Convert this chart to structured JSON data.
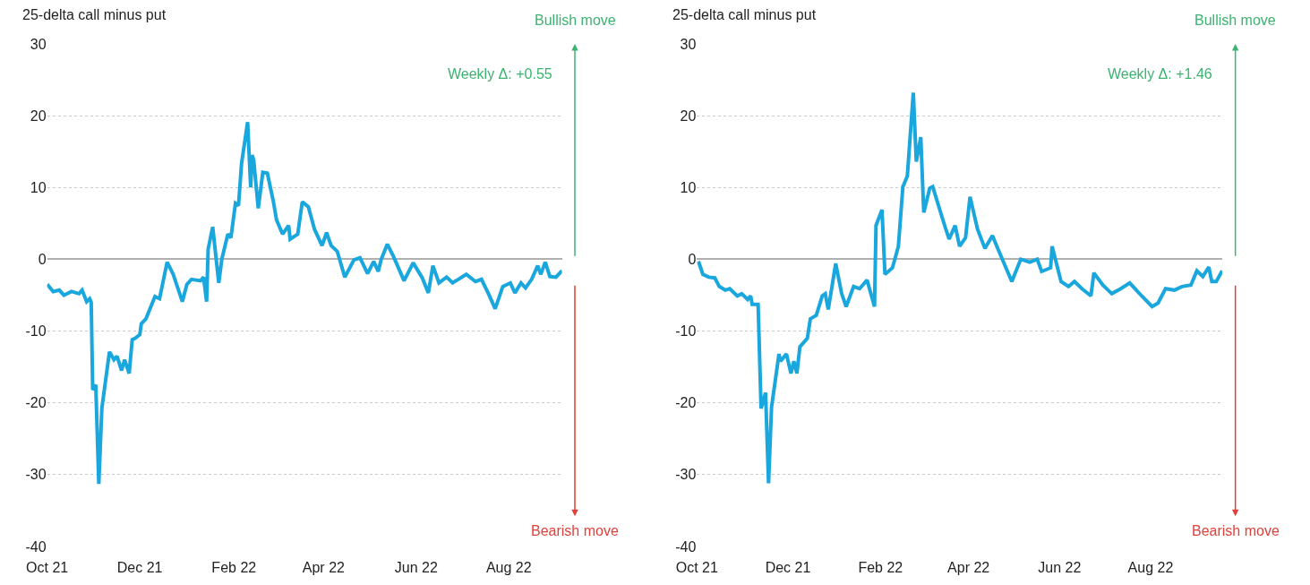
{
  "chart_data": [
    {
      "type": "line",
      "title": "25-delta call minus put",
      "annotations": [
        "Weekly Δ: +0.55",
        "Bullish move",
        "Bearish move"
      ],
      "x": [
        "2021-10-01",
        "2021-10-05",
        "2021-10-09",
        "2021-10-12",
        "2021-10-17",
        "2021-10-22",
        "2021-10-24",
        "2021-10-27",
        "2021-10-29",
        "2021-10-30",
        "2021-10-31",
        "2021-11-02",
        "2021-11-04",
        "2021-11-06",
        "2021-11-11",
        "2021-11-14",
        "2021-11-16",
        "2021-11-19",
        "2021-11-21",
        "2021-11-24",
        "2021-11-26",
        "2021-11-28",
        "2021-12-01",
        "2021-12-02",
        "2021-12-05",
        "2021-12-11",
        "2021-12-14",
        "2021-12-19",
        "2021-12-23",
        "2021-12-29",
        "2022-01-01",
        "2022-01-04",
        "2022-01-10",
        "2022-01-12",
        "2022-01-14",
        "2022-01-15",
        "2022-01-18",
        "2022-01-22",
        "2022-01-24",
        "2022-01-28",
        "2022-01-30",
        "2022-02-02",
        "2022-02-04",
        "2022-02-06",
        "2022-02-10",
        "2022-02-12",
        "2022-02-13",
        "2022-02-14",
        "2022-02-17",
        "2022-02-20",
        "2022-02-23",
        "2022-02-27",
        "2022-03-01",
        "2022-03-05",
        "2022-03-09",
        "2022-03-10",
        "2022-03-15",
        "2022-03-18",
        "2022-03-22",
        "2022-03-26",
        "2022-03-31",
        "2022-04-03",
        "2022-04-06",
        "2022-04-10",
        "2022-04-15",
        "2022-04-21",
        "2022-04-25",
        "2022-04-30",
        "2022-05-04",
        "2022-05-07",
        "2022-05-09",
        "2022-05-13",
        "2022-05-17",
        "2022-05-24",
        "2022-05-30",
        "2022-06-05",
        "2022-06-09",
        "2022-06-12",
        "2022-06-16",
        "2022-06-21",
        "2022-06-25",
        "2022-07-04",
        "2022-07-10",
        "2022-07-14",
        "2022-07-19",
        "2022-07-23",
        "2022-07-28",
        "2022-08-02",
        "2022-08-05",
        "2022-08-09",
        "2022-08-12",
        "2022-08-16",
        "2022-08-20",
        "2022-08-22",
        "2022-08-25",
        "2022-08-28",
        "2022-09-01",
        "2022-09-05"
      ],
      "series": [
        {
          "color": "#1aa7dd",
          "values": [
            -3.5,
            -4.5,
            -4.3,
            -5,
            -4.5,
            -4.8,
            -4.3,
            -5.9,
            -5.5,
            -6,
            -18.2,
            -17.5,
            -31.3,
            -20.8,
            -12.9,
            -14,
            -13.5,
            -15.5,
            -14,
            -15.9,
            -11.2,
            -11,
            -10.5,
            -9,
            -8.3,
            -5.2,
            -5.5,
            -0.4,
            -2.1,
            -5.9,
            -3.5,
            -2.8,
            -3,
            -2.5,
            -5.9,
            1.4,
            4.5,
            -3.3,
            0,
            3.5,
            3,
            7.8,
            7.5,
            13.3,
            19.1,
            10,
            14.5,
            13.8,
            7.1,
            12.1,
            12,
            8,
            5.5,
            3.5,
            4.7,
            2.8,
            3.5,
            8,
            7.3,
            4.2,
            1.9,
            3.7,
            1.9,
            1.1,
            -2.5,
            -0.1,
            0.2,
            -2,
            -0.3,
            -1.7,
            0,
            2.1,
            0.4,
            -3,
            -0.5,
            -2.6,
            -4.7,
            -0.9,
            -3.3,
            -2.5,
            -3.3,
            -2.1,
            -3.1,
            -2.8,
            -5,
            -6.9,
            -3.8,
            -3.3,
            -4.7,
            -3.3,
            -4,
            -2.8,
            -0.9,
            -2.1,
            -0.4,
            -2.4,
            -2.5,
            -1.6
          ]
        }
      ],
      "xlim": [
        "2021-10-01",
        "2022-09-05"
      ],
      "ylim": [
        -40,
        30
      ],
      "yticks": [
        -40,
        -30,
        -20,
        -10,
        0,
        10,
        20,
        30
      ],
      "grid": "y",
      "xticks": [
        {
          "value": "2021-10-01",
          "label": "Oct 21"
        },
        {
          "value": "2021-12-01",
          "label": "Dec 21"
        },
        {
          "value": "2022-02-01",
          "label": "Feb 22"
        },
        {
          "value": "2022-04-01",
          "label": "Apr 22"
        },
        {
          "value": "2022-06-01",
          "label": "Jun 22"
        },
        {
          "value": "2022-08-01",
          "label": "Aug 22"
        }
      ],
      "tick_labels": "xy"
    },
    {
      "type": "line",
      "title": "25-delta call minus put",
      "annotations": [
        "Weekly Δ: +1.46",
        "Bullish move",
        "Bearish move"
      ],
      "x": [
        "2021-10-02",
        "2021-10-05",
        "2021-10-09",
        "2021-10-13",
        "2021-10-16",
        "2021-10-20",
        "2021-10-23",
        "2021-10-28",
        "2021-10-31",
        "2021-11-04",
        "2021-11-06",
        "2021-11-07",
        "2021-11-11",
        "2021-11-13",
        "2021-11-16",
        "2021-11-18",
        "2021-11-20",
        "2021-11-25",
        "2021-11-26",
        "2021-11-30",
        "2021-12-03",
        "2021-12-05",
        "2021-12-07",
        "2021-12-09",
        "2021-12-14",
        "2021-12-16",
        "2021-12-20",
        "2021-12-24",
        "2021-12-26",
        "2021-12-28",
        "2022-01-02",
        "2022-01-06",
        "2022-01-09",
        "2022-01-14",
        "2022-01-18",
        "2022-01-23",
        "2022-01-28",
        "2022-01-29",
        "2022-02-02",
        "2022-02-04",
        "2022-02-09",
        "2022-02-13",
        "2022-02-16",
        "2022-02-19",
        "2022-02-23",
        "2022-02-25",
        "2022-02-28",
        "2022-03-02",
        "2022-03-06",
        "2022-03-08",
        "2022-03-16",
        "2022-03-19",
        "2022-03-23",
        "2022-03-26",
        "2022-03-30",
        "2022-04-02",
        "2022-04-07",
        "2022-04-12",
        "2022-04-17",
        "2022-04-21",
        "2022-04-30",
        "2022-05-06",
        "2022-05-12",
        "2022-05-17",
        "2022-05-20",
        "2022-05-26",
        "2022-05-27",
        "2022-06-02",
        "2022-06-07",
        "2022-06-11",
        "2022-06-16",
        "2022-06-22",
        "2022-06-24",
        "2022-06-30",
        "2022-07-06",
        "2022-07-12",
        "2022-07-18",
        "2022-07-26",
        "2022-08-02",
        "2022-08-06",
        "2022-08-11",
        "2022-08-17",
        "2022-08-22",
        "2022-08-28",
        "2022-09-01",
        "2022-09-05",
        "2022-09-09",
        "2022-09-11",
        "2022-09-14",
        "2022-09-18"
      ],
      "series": [
        {
          "color": "#1aa7dd",
          "values": [
            -0.3,
            -2.1,
            -2.5,
            -2.6,
            -3.8,
            -4.3,
            -4.1,
            -5.1,
            -4.8,
            -5.6,
            -5.1,
            -6.3,
            -6.3,
            -20.8,
            -18.6,
            -31.2,
            -20.6,
            -13.2,
            -14.2,
            -13.2,
            -15.9,
            -14.2,
            -15.9,
            -12.2,
            -11,
            -8.3,
            -7.8,
            -5.1,
            -4.8,
            -7,
            -0.6,
            -4.8,
            -6.6,
            -3.8,
            -4.1,
            -2.9,
            -6.6,
            4.7,
            6.9,
            -2.1,
            -1.2,
            1.8,
            10.1,
            11.6,
            23.2,
            13.6,
            17,
            6.5,
            9.9,
            10.1,
            4.7,
            2.8,
            4.7,
            1.8,
            3,
            8.7,
            4.2,
            1.5,
            3.3,
            1.3,
            -3.1,
            0,
            -0.4,
            0,
            -1.7,
            -1.2,
            1.8,
            -3.1,
            -3.8,
            -3.1,
            -4.1,
            -5.1,
            -1.9,
            -3.6,
            -4.8,
            -4.1,
            -3.3,
            -5.1,
            -6.6,
            -6.1,
            -4.1,
            -4.3,
            -3.8,
            -3.6,
            -1.6,
            -2.4,
            -1.1,
            -3.1,
            -3.1,
            -1.6
          ]
        }
      ],
      "xlim": [
        "2021-10-01",
        "2022-09-18"
      ],
      "ylim": [
        -40,
        30
      ],
      "yticks": [
        -40,
        -30,
        -20,
        -10,
        0,
        10,
        20,
        30
      ],
      "xticks": [
        {
          "value": "2021-10-01",
          "label": "Oct 21"
        },
        {
          "value": "2021-12-01",
          "label": "Dec 21"
        },
        {
          "value": "2022-02-01",
          "label": "Feb 22"
        },
        {
          "value": "2022-04-01",
          "label": "Apr 22"
        },
        {
          "value": "2022-06-01",
          "label": "Jun 22"
        },
        {
          "value": "2022-08-01",
          "label": "Aug 22"
        }
      ],
      "grid": "y"
    }
  ]
}
